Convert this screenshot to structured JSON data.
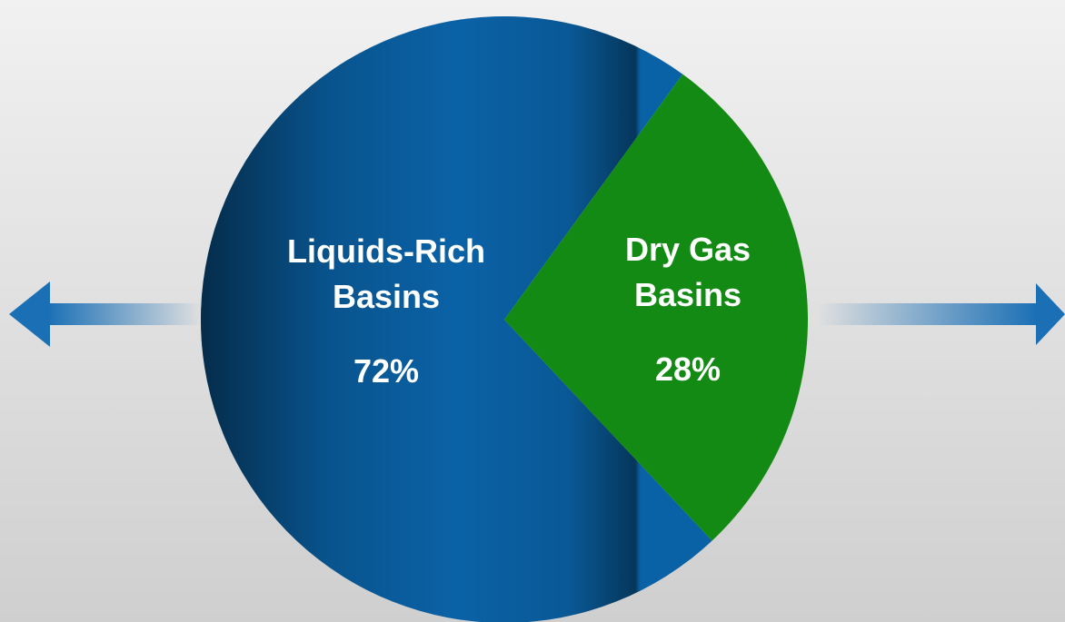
{
  "chart_data": {
    "type": "pie",
    "categories": [
      "Liquids-Rich Basins",
      "Dry Gas Basins"
    ],
    "values": [
      72,
      28
    ],
    "value_labels": [
      "72%",
      "28%"
    ],
    "colors": [
      "#0a62a6",
      "#138a13"
    ]
  }
}
